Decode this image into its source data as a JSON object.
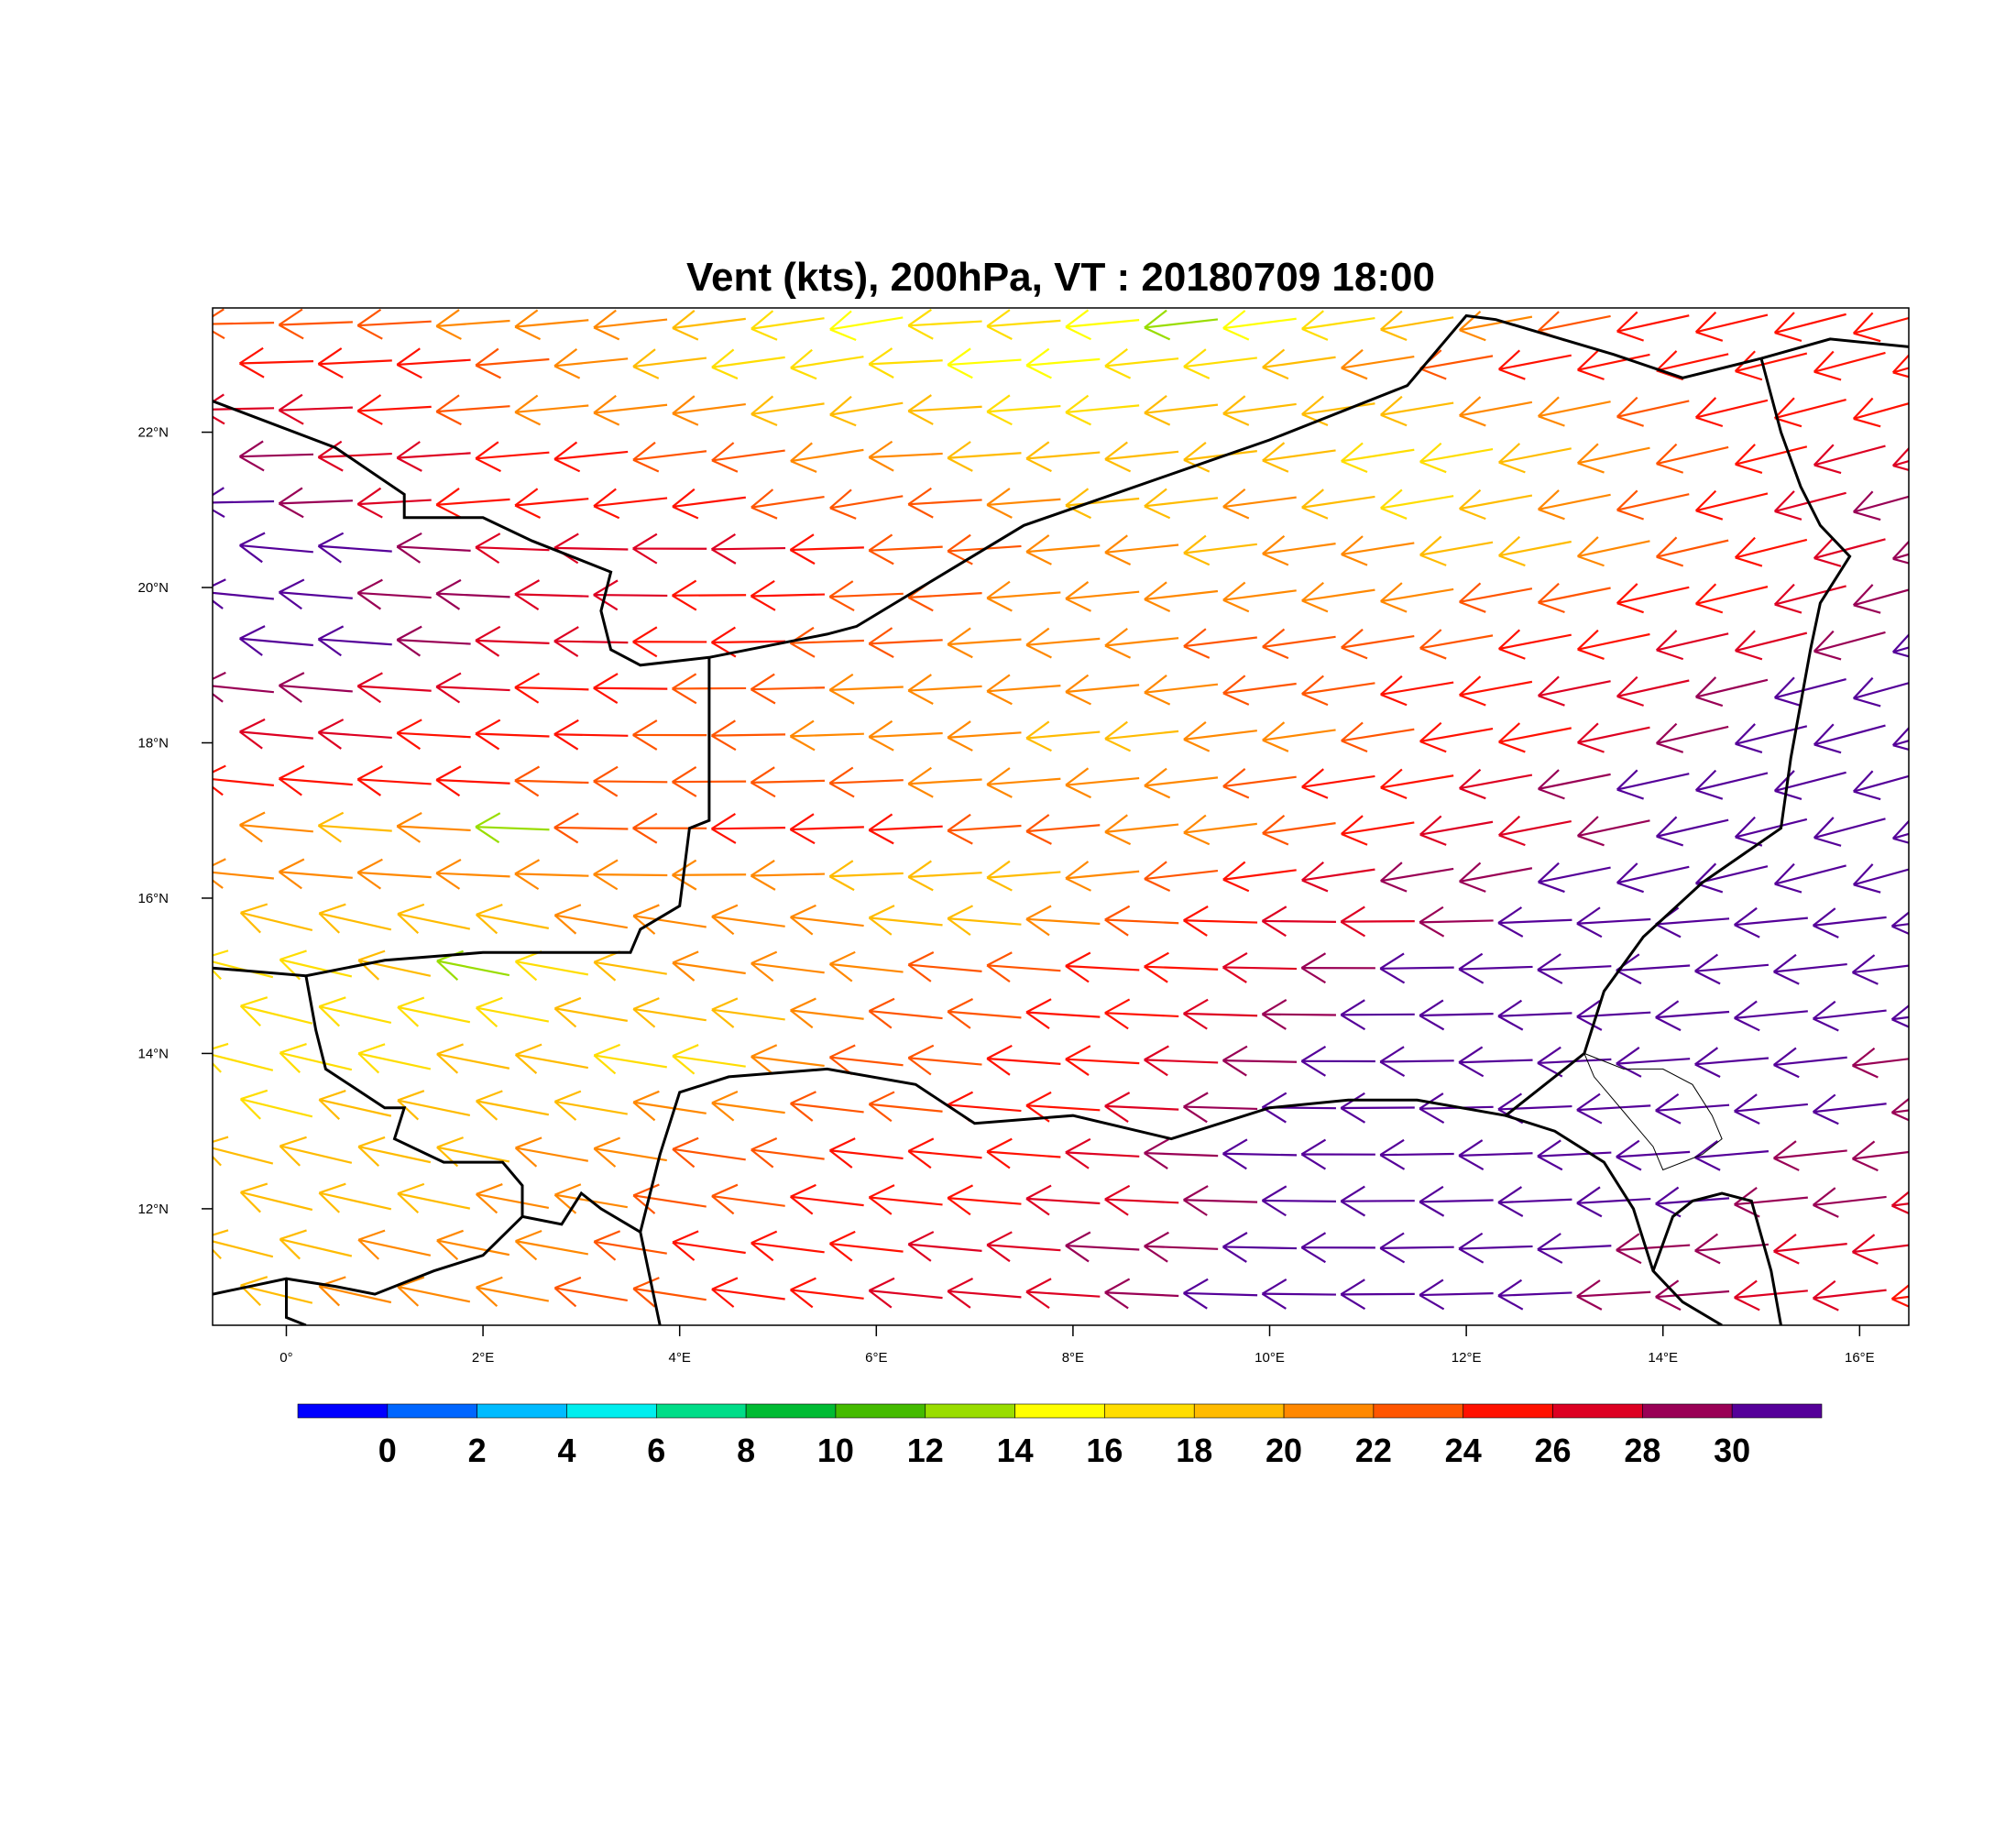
{
  "title": "Vent (kts), 200hPa, VT : 20180709  18:00",
  "map": {
    "projection": "cylindrical equidistant",
    "lon_range": [
      -0.75,
      16.5
    ],
    "lat_range": [
      10.5,
      23.6
    ],
    "lon_ticks": [
      {
        "value": 0,
        "label": "0°"
      },
      {
        "value": 2,
        "label": "2°E"
      },
      {
        "value": 4,
        "label": "4°E"
      },
      {
        "value": 6,
        "label": "6°E"
      },
      {
        "value": 8,
        "label": "8°E"
      },
      {
        "value": 10,
        "label": "10°E"
      },
      {
        "value": 12,
        "label": "12°E"
      },
      {
        "value": 14,
        "label": "14°E"
      },
      {
        "value": 16,
        "label": "16°E"
      }
    ],
    "lat_ticks": [
      {
        "value": 12,
        "label": "12°N"
      },
      {
        "value": 14,
        "label": "14°N"
      },
      {
        "value": 16,
        "label": "16°N"
      },
      {
        "value": 18,
        "label": "18°N"
      },
      {
        "value": 20,
        "label": "20°N"
      },
      {
        "value": 22,
        "label": "22°N"
      }
    ],
    "borders": [
      [
        [
          -0.75,
          22.4
        ],
        [
          0.5,
          21.8
        ],
        [
          1.2,
          21.2
        ],
        [
          1.2,
          20.9
        ],
        [
          2.0,
          20.9
        ],
        [
          2.5,
          20.6
        ],
        [
          3.3,
          20.2
        ],
        [
          3.2,
          19.7
        ],
        [
          3.3,
          19.2
        ],
        [
          3.6,
          19.0
        ],
        [
          4.3,
          19.1
        ],
        [
          5.5,
          19.4
        ],
        [
          5.8,
          19.5
        ],
        [
          7.5,
          20.8
        ],
        [
          10.0,
          21.9
        ],
        [
          11.4,
          22.6
        ],
        [
          12.0,
          23.5
        ],
        [
          12.3,
          23.45
        ],
        [
          13.5,
          23.0
        ],
        [
          14.2,
          22.7
        ],
        [
          15.0,
          22.95
        ],
        [
          15.7,
          23.2
        ],
        [
          16.5,
          23.1
        ]
      ],
      [
        [
          15.0,
          22.95
        ],
        [
          15.2,
          22.0
        ],
        [
          15.4,
          21.3
        ],
        [
          15.6,
          20.8
        ],
        [
          15.9,
          20.4
        ],
        [
          15.6,
          19.8
        ],
        [
          15.5,
          19.2
        ],
        [
          15.3,
          17.8
        ],
        [
          15.2,
          16.9
        ],
        [
          14.4,
          16.2
        ],
        [
          13.8,
          15.5
        ],
        [
          13.4,
          14.8
        ],
        [
          13.3,
          14.4
        ],
        [
          13.2,
          14.0
        ],
        [
          12.8,
          13.6
        ],
        [
          12.4,
          13.2
        ],
        [
          11.5,
          13.4
        ],
        [
          10.8,
          13.4
        ],
        [
          10.0,
          13.3
        ],
        [
          9.0,
          12.9
        ],
        [
          8.0,
          13.2
        ],
        [
          7.0,
          13.1
        ],
        [
          6.4,
          13.6
        ],
        [
          5.5,
          13.8
        ],
        [
          4.5,
          13.7
        ],
        [
          4.0,
          13.5
        ],
        [
          3.8,
          12.7
        ],
        [
          3.6,
          11.7
        ],
        [
          3.8,
          10.5
        ]
      ],
      [
        [
          4.3,
          19.1
        ],
        [
          4.3,
          17.0
        ],
        [
          4.1,
          16.9
        ],
        [
          4.0,
          15.9
        ],
        [
          3.6,
          15.6
        ],
        [
          3.5,
          15.3
        ],
        [
          2.0,
          15.3
        ],
        [
          1.0,
          15.2
        ],
        [
          0.2,
          15.0
        ],
        [
          -0.75,
          15.1
        ]
      ],
      [
        [
          0.2,
          15.0
        ],
        [
          0.3,
          14.3
        ],
        [
          0.4,
          13.8
        ],
        [
          1.0,
          13.3
        ],
        [
          1.2,
          13.3
        ],
        [
          1.1,
          12.9
        ],
        [
          1.6,
          12.6
        ],
        [
          2.2,
          12.6
        ],
        [
          2.4,
          12.3
        ],
        [
          2.4,
          11.9
        ],
        [
          2.8,
          11.8
        ],
        [
          3.0,
          12.2
        ],
        [
          3.2,
          12.0
        ],
        [
          3.6,
          11.7
        ]
      ],
      [
        [
          -0.75,
          10.9
        ],
        [
          0.0,
          11.1
        ],
        [
          0.5,
          11.0
        ],
        [
          0.9,
          10.9
        ],
        [
          1.5,
          11.2
        ],
        [
          2.0,
          11.4
        ],
        [
          2.4,
          11.9
        ]
      ],
      [
        [
          0.0,
          11.1
        ],
        [
          0.0,
          10.6
        ],
        [
          0.2,
          10.5
        ]
      ],
      [
        [
          12.4,
          13.2
        ],
        [
          12.9,
          13.0
        ],
        [
          13.4,
          12.6
        ],
        [
          13.7,
          12.0
        ],
        [
          13.9,
          11.2
        ],
        [
          14.2,
          10.8
        ],
        [
          14.6,
          10.5
        ]
      ],
      [
        [
          13.9,
          11.2
        ],
        [
          14.1,
          11.9
        ],
        [
          14.3,
          12.1
        ],
        [
          14.6,
          12.2
        ],
        [
          14.9,
          12.1
        ],
        [
          15.1,
          11.2
        ],
        [
          15.2,
          10.5
        ]
      ]
    ],
    "lake_outline": [
      [
        13.2,
        14.0
      ],
      [
        13.6,
        13.8
      ],
      [
        14.0,
        13.8
      ],
      [
        14.3,
        13.6
      ],
      [
        14.5,
        13.2
      ],
      [
        14.6,
        12.9
      ],
      [
        14.4,
        12.7
      ],
      [
        14.2,
        12.6
      ],
      [
        14.0,
        12.5
      ],
      [
        13.9,
        12.8
      ],
      [
        13.7,
        13.1
      ],
      [
        13.5,
        13.4
      ],
      [
        13.3,
        13.7
      ],
      [
        13.2,
        14.0
      ]
    ],
    "wind_field": {
      "arrows_rows": [
        {
          "lat": 23.4,
          "speeds": [
            22,
            22,
            22,
            20,
            20,
            20,
            18,
            16,
            14,
            16,
            16,
            14,
            13,
            14,
            16,
            18,
            20,
            22,
            24,
            24,
            24,
            24
          ]
        },
        {
          "lat": 22.9,
          "speeds": [
            24,
            24,
            24,
            22,
            20,
            18,
            16,
            16,
            16,
            14,
            14,
            16,
            16,
            18,
            20,
            22,
            24,
            24,
            24,
            24,
            24,
            24
          ]
        },
        {
          "lat": 22.3,
          "speeds": [
            26,
            26,
            24,
            22,
            20,
            20,
            20,
            18,
            18,
            18,
            16,
            16,
            18,
            18,
            18,
            18,
            20,
            20,
            22,
            24,
            24,
            24
          ]
        },
        {
          "lat": 21.7,
          "speeds": [
            28,
            26,
            26,
            24,
            24,
            22,
            22,
            20,
            20,
            18,
            18,
            18,
            18,
            18,
            16,
            16,
            18,
            20,
            22,
            24,
            26,
            26
          ]
        },
        {
          "lat": 21.1,
          "speeds": [
            30,
            28,
            26,
            24,
            24,
            24,
            24,
            22,
            22,
            22,
            20,
            18,
            18,
            20,
            18,
            16,
            18,
            20,
            22,
            24,
            26,
            28
          ]
        },
        {
          "lat": 20.5,
          "speeds": [
            30,
            30,
            28,
            26,
            26,
            26,
            26,
            24,
            22,
            22,
            20,
            20,
            18,
            20,
            20,
            18,
            18,
            20,
            22,
            24,
            26,
            28
          ]
        },
        {
          "lat": 19.9,
          "speeds": [
            30,
            30,
            28,
            28,
            26,
            26,
            24,
            24,
            22,
            22,
            20,
            20,
            20,
            20,
            20,
            20,
            22,
            22,
            24,
            24,
            26,
            28
          ]
        },
        {
          "lat": 19.3,
          "speeds": [
            30,
            30,
            28,
            26,
            26,
            24,
            24,
            22,
            22,
            20,
            20,
            20,
            22,
            22,
            22,
            22,
            24,
            24,
            26,
            26,
            28,
            30
          ]
        },
        {
          "lat": 18.7,
          "speeds": [
            28,
            28,
            26,
            26,
            24,
            24,
            22,
            22,
            20,
            20,
            20,
            20,
            20,
            22,
            22,
            24,
            24,
            26,
            26,
            28,
            30,
            30
          ]
        },
        {
          "lat": 18.1,
          "speeds": [
            26,
            26,
            24,
            24,
            24,
            22,
            22,
            20,
            20,
            20,
            18,
            18,
            20,
            20,
            22,
            24,
            24,
            26,
            28,
            30,
            30,
            30
          ]
        },
        {
          "lat": 17.5,
          "speeds": [
            24,
            24,
            24,
            24,
            22,
            22,
            22,
            22,
            22,
            20,
            20,
            20,
            20,
            22,
            24,
            24,
            26,
            28,
            30,
            30,
            30,
            30
          ]
        },
        {
          "lat": 16.9,
          "speeds": [
            20,
            18,
            20,
            12,
            22,
            22,
            24,
            24,
            24,
            22,
            22,
            20,
            20,
            22,
            24,
            26,
            26,
            28,
            30,
            30,
            30,
            30
          ]
        },
        {
          "lat": 16.3,
          "speeds": [
            20,
            20,
            20,
            20,
            20,
            20,
            20,
            20,
            18,
            18,
            18,
            20,
            22,
            24,
            26,
            28,
            28,
            30,
            30,
            30,
            30,
            30
          ]
        },
        {
          "lat": 15.7,
          "speeds": [
            18,
            18,
            18,
            18,
            20,
            20,
            20,
            20,
            18,
            18,
            20,
            22,
            24,
            26,
            26,
            28,
            30,
            30,
            30,
            30,
            30,
            30
          ]
        },
        {
          "lat": 15.1,
          "speeds": [
            16,
            16,
            18,
            12,
            16,
            18,
            20,
            20,
            20,
            22,
            22,
            24,
            24,
            26,
            28,
            30,
            30,
            30,
            30,
            30,
            30,
            30
          ]
        },
        {
          "lat": 14.5,
          "speeds": [
            16,
            16,
            16,
            16,
            18,
            18,
            18,
            20,
            22,
            22,
            24,
            24,
            26,
            28,
            30,
            30,
            30,
            30,
            30,
            30,
            30,
            30
          ]
        },
        {
          "lat": 13.9,
          "speeds": [
            16,
            16,
            16,
            18,
            18,
            16,
            16,
            20,
            22,
            22,
            24,
            24,
            26,
            28,
            30,
            30,
            30,
            30,
            30,
            30,
            30,
            28
          ]
        },
        {
          "lat": 13.3,
          "speeds": [
            16,
            18,
            18,
            18,
            18,
            20,
            20,
            22,
            22,
            24,
            24,
            26,
            28,
            30,
            30,
            30,
            30,
            30,
            30,
            30,
            30,
            28
          ]
        },
        {
          "lat": 12.7,
          "speeds": [
            18,
            18,
            18,
            18,
            20,
            20,
            22,
            22,
            24,
            24,
            24,
            26,
            28,
            30,
            30,
            30,
            30,
            30,
            30,
            30,
            28,
            28
          ]
        },
        {
          "lat": 12.1,
          "speeds": [
            18,
            18,
            18,
            20,
            20,
            22,
            22,
            24,
            24,
            24,
            26,
            26,
            28,
            30,
            30,
            30,
            30,
            30,
            30,
            28,
            28,
            26
          ]
        },
        {
          "lat": 11.5,
          "speeds": [
            18,
            18,
            20,
            20,
            20,
            22,
            24,
            24,
            24,
            26,
            26,
            28,
            28,
            30,
            30,
            30,
            30,
            30,
            28,
            28,
            26,
            26
          ]
        },
        {
          "lat": 10.9,
          "speeds": [
            18,
            20,
            20,
            20,
            22,
            22,
            24,
            24,
            26,
            26,
            26,
            28,
            30,
            30,
            30,
            30,
            30,
            28,
            28,
            26,
            26,
            24
          ]
        }
      ],
      "lon_start": -0.5,
      "lon_step": 0.8,
      "shaft_length_deg": 0.75
    }
  },
  "colorbar": {
    "colors": [
      "#0000ff",
      "#0066ff",
      "#00bbff",
      "#00eeee",
      "#00dd88",
      "#00bb33",
      "#44bb00",
      "#99dd00",
      "#ffff00",
      "#ffdd00",
      "#ffbb00",
      "#ff8800",
      "#ff5500",
      "#ff1100",
      "#dd0022",
      "#990055",
      "#550099"
    ],
    "labels": [
      "0",
      "2",
      "4",
      "6",
      "8",
      "10",
      "12",
      "14",
      "16",
      "18",
      "20",
      "22",
      "24",
      "26",
      "28",
      "30"
    ]
  },
  "border_color": "#000000"
}
